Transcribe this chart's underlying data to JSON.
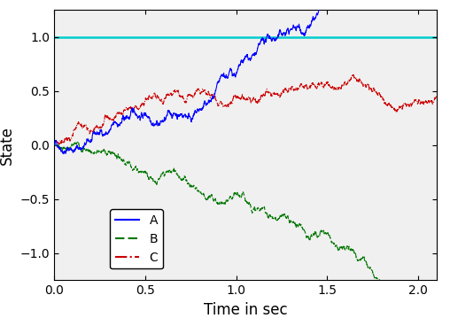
{
  "title": "",
  "xlabel": "Time in sec",
  "ylabel": "State",
  "xlim": [
    0,
    2.1
  ],
  "ylim": [
    -1.25,
    1.25
  ],
  "xticks": [
    0,
    0.5,
    1.0,
    1.5,
    2.0
  ],
  "yticks": [
    -1.0,
    -0.5,
    0.0,
    0.5,
    1.0
  ],
  "threshold_y": 1.0,
  "threshold_color": "#00CCCC",
  "line_A_color": "#0000FF",
  "line_B_color": "#007700",
  "line_C_color": "#CC0000",
  "legend_labels": [
    "A",
    "B",
    "C"
  ],
  "legend_loc": "lower left",
  "figsize": [
    5.08,
    3.68
  ],
  "dpi": 100,
  "n_steps": 2100,
  "dt": 0.001
}
